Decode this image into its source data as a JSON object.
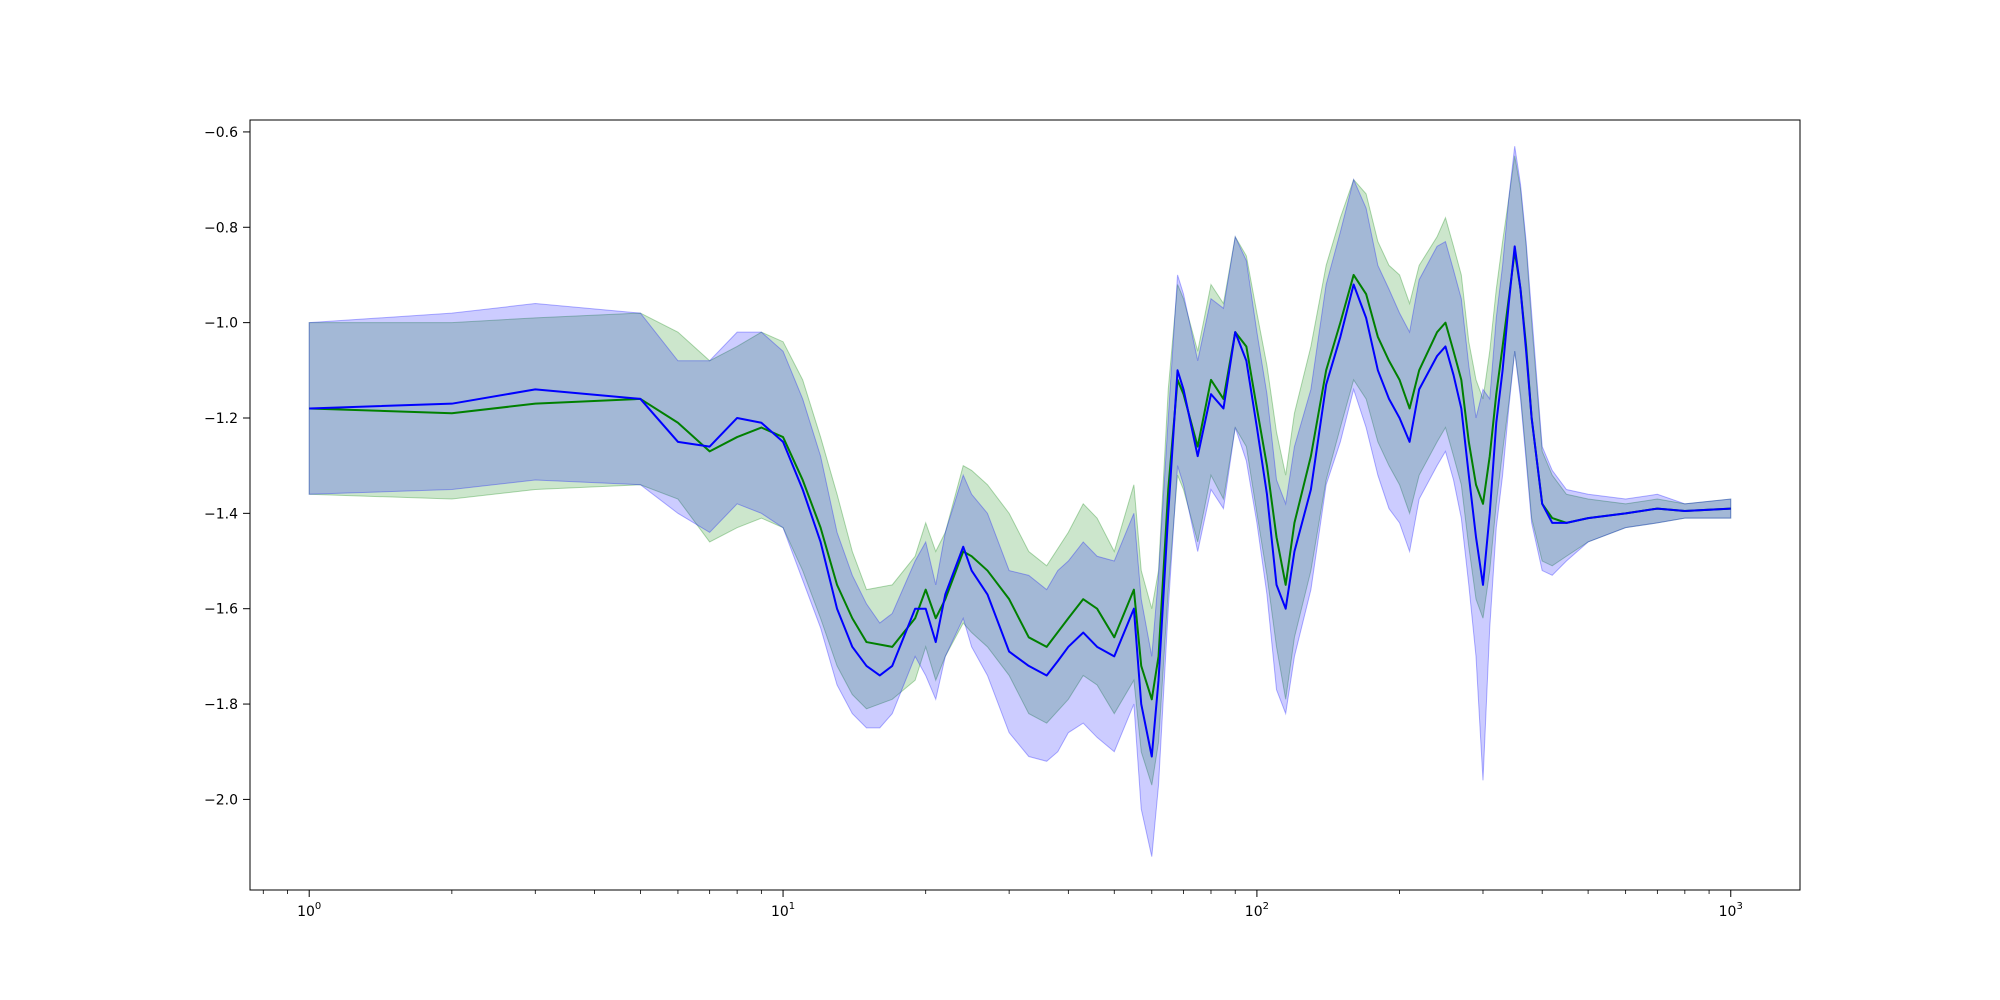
{
  "chart_data": {
    "type": "line",
    "title": "",
    "xlabel": "",
    "ylabel": "",
    "xscale": "log",
    "xlim": [
      0.75,
      1400
    ],
    "ylim": [
      -2.19,
      -0.575
    ],
    "grid": false,
    "legend": "none",
    "x_ticks": [
      {
        "value": 1,
        "base": "10",
        "exp": "0"
      },
      {
        "value": 10,
        "base": "10",
        "exp": "1"
      },
      {
        "value": 100,
        "base": "10",
        "exp": "2"
      },
      {
        "value": 1000,
        "base": "10",
        "exp": "3"
      }
    ],
    "y_ticks": [
      {
        "value": -0.6,
        "label": "−0.6"
      },
      {
        "value": -0.8,
        "label": "−0.8"
      },
      {
        "value": -1.0,
        "label": "−1.0"
      },
      {
        "value": -1.2,
        "label": "−1.2"
      },
      {
        "value": -1.4,
        "label": "−1.4"
      },
      {
        "value": -1.6,
        "label": "−1.6"
      },
      {
        "value": -1.8,
        "label": "−1.8"
      },
      {
        "value": -2.0,
        "label": "−2.0"
      }
    ],
    "series": [
      {
        "color": "#008000",
        "band_color": "#008000",
        "band_opacity": 0.2,
        "x": [
          1,
          2,
          3,
          5,
          6,
          7,
          8,
          9,
          10,
          11,
          12,
          13,
          14,
          15,
          17,
          19,
          20,
          21,
          22,
          24,
          25,
          27,
          30,
          33,
          36,
          40,
          43,
          46,
          50,
          55,
          57,
          60,
          62,
          65,
          68,
          70,
          75,
          80,
          85,
          90,
          95,
          100,
          105,
          110,
          115,
          120,
          130,
          140,
          150,
          160,
          170,
          180,
          190,
          200,
          210,
          220,
          240,
          250,
          260,
          270,
          280,
          290,
          300,
          310,
          320,
          330,
          340,
          350,
          360,
          370,
          380,
          400,
          420,
          450,
          500,
          600,
          700,
          800,
          1000
        ],
        "y": [
          -1.18,
          -1.19,
          -1.17,
          -1.16,
          -1.21,
          -1.27,
          -1.24,
          -1.22,
          -1.24,
          -1.33,
          -1.43,
          -1.55,
          -1.62,
          -1.67,
          -1.68,
          -1.62,
          -1.56,
          -1.62,
          -1.58,
          -1.48,
          -1.49,
          -1.52,
          -1.58,
          -1.66,
          -1.68,
          -1.62,
          -1.58,
          -1.6,
          -1.66,
          -1.56,
          -1.72,
          -1.79,
          -1.7,
          -1.35,
          -1.12,
          -1.15,
          -1.26,
          -1.12,
          -1.16,
          -1.02,
          -1.05,
          -1.18,
          -1.3,
          -1.45,
          -1.55,
          -1.42,
          -1.28,
          -1.1,
          -1.0,
          -0.9,
          -0.94,
          -1.03,
          -1.08,
          -1.12,
          -1.18,
          -1.1,
          -1.02,
          -1.0,
          -1.06,
          -1.12,
          -1.25,
          -1.34,
          -1.38,
          -1.28,
          -1.15,
          -1.05,
          -0.95,
          -0.85,
          -0.93,
          -1.05,
          -1.2,
          -1.38,
          -1.41,
          -1.42,
          -1.41,
          -1.4,
          -1.39,
          -1.395,
          -1.39
        ],
        "lower": [
          -1.36,
          -1.37,
          -1.35,
          -1.34,
          -1.37,
          -1.46,
          -1.43,
          -1.41,
          -1.43,
          -1.52,
          -1.62,
          -1.72,
          -1.78,
          -1.81,
          -1.79,
          -1.75,
          -1.68,
          -1.75,
          -1.7,
          -1.63,
          -1.65,
          -1.68,
          -1.74,
          -1.82,
          -1.84,
          -1.79,
          -1.74,
          -1.76,
          -1.82,
          -1.75,
          -1.9,
          -1.97,
          -1.88,
          -1.56,
          -1.32,
          -1.35,
          -1.46,
          -1.32,
          -1.37,
          -1.22,
          -1.26,
          -1.4,
          -1.53,
          -1.68,
          -1.79,
          -1.66,
          -1.52,
          -1.33,
          -1.22,
          -1.12,
          -1.16,
          -1.25,
          -1.3,
          -1.34,
          -1.4,
          -1.32,
          -1.25,
          -1.22,
          -1.28,
          -1.34,
          -1.47,
          -1.58,
          -1.62,
          -1.52,
          -1.38,
          -1.27,
          -1.17,
          -1.06,
          -1.15,
          -1.28,
          -1.41,
          -1.5,
          -1.51,
          -1.49,
          -1.46,
          -1.43,
          -1.42,
          -1.41,
          -1.41
        ],
        "upper": [
          -1.0,
          -1.0,
          -0.99,
          -0.98,
          -1.02,
          -1.08,
          -1.05,
          -1.02,
          -1.04,
          -1.12,
          -1.24,
          -1.36,
          -1.48,
          -1.56,
          -1.55,
          -1.49,
          -1.42,
          -1.48,
          -1.44,
          -1.3,
          -1.31,
          -1.34,
          -1.4,
          -1.48,
          -1.51,
          -1.44,
          -1.38,
          -1.41,
          -1.48,
          -1.34,
          -1.52,
          -1.6,
          -1.52,
          -1.14,
          -0.92,
          -0.95,
          -1.06,
          -0.92,
          -0.96,
          -0.82,
          -0.86,
          -0.98,
          -1.09,
          -1.23,
          -1.32,
          -1.19,
          -1.05,
          -0.88,
          -0.78,
          -0.7,
          -0.73,
          -0.83,
          -0.88,
          -0.9,
          -0.96,
          -0.88,
          -0.82,
          -0.78,
          -0.84,
          -0.9,
          -1.04,
          -1.12,
          -1.16,
          -1.06,
          -0.93,
          -0.83,
          -0.74,
          -0.65,
          -0.72,
          -0.84,
          -1.0,
          -1.27,
          -1.32,
          -1.36,
          -1.37,
          -1.38,
          -1.37,
          -1.38,
          -1.37
        ]
      },
      {
        "color": "#0000ff",
        "band_color": "#0000ff",
        "band_opacity": 0.2,
        "x": [
          1,
          2,
          3,
          5,
          6,
          7,
          8,
          9,
          10,
          11,
          12,
          13,
          14,
          15,
          16,
          17,
          19,
          20,
          21,
          22,
          24,
          25,
          27,
          30,
          33,
          36,
          38,
          40,
          43,
          46,
          50,
          55,
          57,
          60,
          62,
          65,
          68,
          70,
          75,
          80,
          85,
          90,
          95,
          100,
          105,
          110,
          115,
          120,
          130,
          140,
          150,
          160,
          170,
          180,
          190,
          200,
          210,
          220,
          240,
          250,
          260,
          270,
          280,
          290,
          300,
          310,
          320,
          330,
          340,
          350,
          360,
          370,
          380,
          400,
          420,
          450,
          500,
          600,
          700,
          800,
          1000
        ],
        "y": [
          -1.18,
          -1.17,
          -1.14,
          -1.16,
          -1.25,
          -1.26,
          -1.2,
          -1.21,
          -1.25,
          -1.35,
          -1.46,
          -1.6,
          -1.68,
          -1.72,
          -1.74,
          -1.72,
          -1.6,
          -1.6,
          -1.67,
          -1.57,
          -1.47,
          -1.52,
          -1.57,
          -1.69,
          -1.72,
          -1.74,
          -1.71,
          -1.68,
          -1.65,
          -1.68,
          -1.7,
          -1.6,
          -1.8,
          -1.91,
          -1.75,
          -1.4,
          -1.1,
          -1.14,
          -1.28,
          -1.15,
          -1.18,
          -1.02,
          -1.08,
          -1.22,
          -1.36,
          -1.55,
          -1.6,
          -1.48,
          -1.35,
          -1.13,
          -1.03,
          -0.92,
          -0.99,
          -1.1,
          -1.16,
          -1.2,
          -1.25,
          -1.14,
          -1.07,
          -1.05,
          -1.11,
          -1.18,
          -1.32,
          -1.45,
          -1.55,
          -1.4,
          -1.21,
          -1.1,
          -0.96,
          -0.84,
          -0.93,
          -1.06,
          -1.2,
          -1.38,
          -1.42,
          -1.42,
          -1.41,
          -1.4,
          -1.39,
          -1.395,
          -1.39
        ],
        "lower": [
          -1.36,
          -1.35,
          -1.33,
          -1.34,
          -1.4,
          -1.44,
          -1.38,
          -1.4,
          -1.43,
          -1.54,
          -1.64,
          -1.76,
          -1.82,
          -1.85,
          -1.85,
          -1.82,
          -1.7,
          -1.74,
          -1.79,
          -1.7,
          -1.62,
          -1.68,
          -1.74,
          -1.86,
          -1.91,
          -1.92,
          -1.9,
          -1.86,
          -1.84,
          -1.87,
          -1.9,
          -1.8,
          -2.02,
          -2.12,
          -1.97,
          -1.6,
          -1.3,
          -1.34,
          -1.48,
          -1.35,
          -1.39,
          -1.22,
          -1.29,
          -1.42,
          -1.57,
          -1.77,
          -1.82,
          -1.7,
          -1.56,
          -1.34,
          -1.25,
          -1.14,
          -1.22,
          -1.32,
          -1.39,
          -1.42,
          -1.48,
          -1.37,
          -1.3,
          -1.27,
          -1.33,
          -1.41,
          -1.55,
          -1.7,
          -1.96,
          -1.64,
          -1.43,
          -1.32,
          -1.18,
          -1.06,
          -1.16,
          -1.29,
          -1.42,
          -1.52,
          -1.53,
          -1.5,
          -1.46,
          -1.43,
          -1.42,
          -1.41,
          -1.41
        ],
        "upper": [
          -1.0,
          -0.98,
          -0.96,
          -0.98,
          -1.08,
          -1.08,
          -1.02,
          -1.02,
          -1.06,
          -1.16,
          -1.28,
          -1.44,
          -1.53,
          -1.59,
          -1.63,
          -1.61,
          -1.5,
          -1.46,
          -1.55,
          -1.44,
          -1.32,
          -1.36,
          -1.4,
          -1.52,
          -1.53,
          -1.56,
          -1.52,
          -1.5,
          -1.46,
          -1.49,
          -1.5,
          -1.4,
          -1.58,
          -1.7,
          -1.53,
          -1.2,
          -0.9,
          -0.94,
          -1.08,
          -0.95,
          -0.97,
          -0.82,
          -0.87,
          -1.02,
          -1.15,
          -1.33,
          -1.38,
          -1.26,
          -1.14,
          -0.92,
          -0.81,
          -0.7,
          -0.76,
          -0.88,
          -0.93,
          -0.98,
          -1.02,
          -0.91,
          -0.84,
          -0.83,
          -0.89,
          -0.95,
          -1.09,
          -1.2,
          -1.14,
          -1.16,
          -0.99,
          -0.88,
          -0.74,
          -0.63,
          -0.71,
          -0.83,
          -0.98,
          -1.26,
          -1.31,
          -1.35,
          -1.36,
          -1.37,
          -1.36,
          -1.38,
          -1.37
        ]
      }
    ]
  }
}
